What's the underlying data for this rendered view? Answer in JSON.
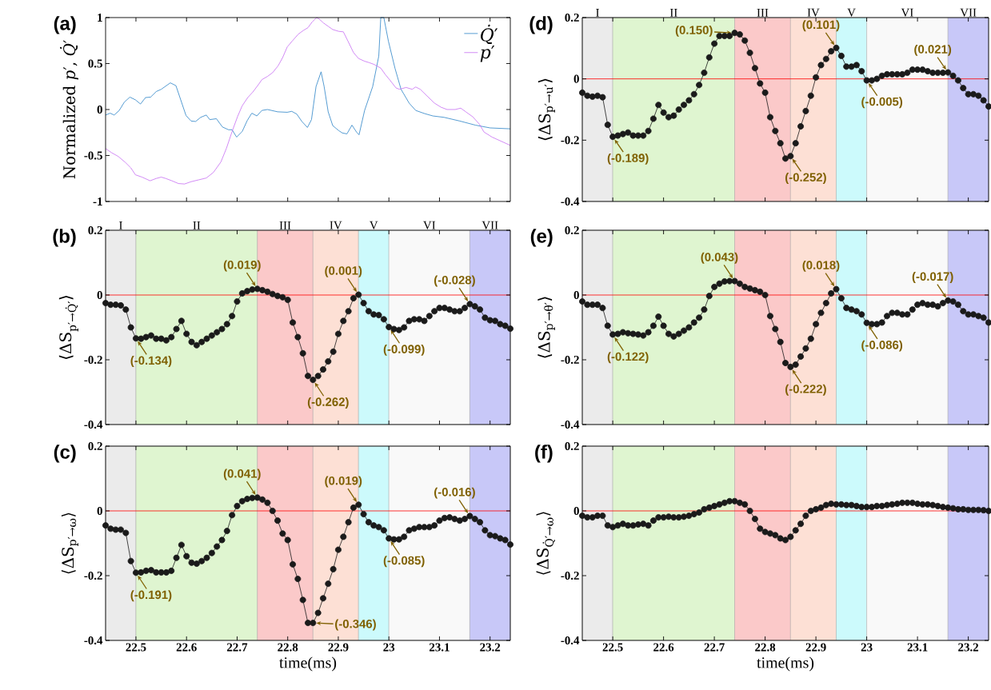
{
  "chart_data": [
    {
      "type": "line",
      "ylabel": "Normalized *p*′, *Q̇*′",
      "xlim": [
        22.44,
        23.24
      ],
      "ylim": [
        -1,
        1
      ],
      "xticks": [
        22.5,
        22.6,
        22.7,
        22.8,
        22.9,
        23,
        23.1,
        23.2
      ],
      "yticks": [
        -1,
        -0.5,
        0,
        0.5,
        1
      ],
      "tick_labels": "y",
      "legend": "top right",
      "annotations": [
        "(a)"
      ],
      "series": [
        {
          "name": "*Q̇*′",
          "color": "#2b83c6",
          "x": [
            22.44,
            22.449,
            22.457,
            22.467,
            22.477,
            22.488,
            22.499,
            22.509,
            22.519,
            22.529,
            22.54,
            22.55,
            22.568,
            22.579,
            22.599,
            22.609,
            22.618,
            22.628,
            22.639,
            22.646,
            22.659,
            22.671,
            22.683,
            22.69,
            22.699,
            22.71,
            22.72,
            22.729,
            22.739,
            22.749,
            22.76,
            22.78,
            22.799,
            22.808,
            22.818,
            22.828,
            22.839,
            22.847,
            22.856,
            22.866,
            22.872,
            22.88,
            22.889,
            22.901,
            22.908,
            22.917,
            22.927,
            22.936,
            22.941,
            22.952,
            22.968,
            22.98,
            22.984,
            22.99,
            22.999,
            23.012,
            23.024,
            23.04,
            23.053,
            23.071,
            23.087,
            23.109,
            23.14,
            23.171,
            23.2,
            23.24
          ],
          "values": [
            -0.06,
            -0.04,
            -0.06,
            -0.01,
            0.08,
            0.135,
            0.105,
            0.06,
            0.13,
            0.135,
            0.195,
            0.22,
            0.29,
            0.26,
            -0.065,
            -0.125,
            -0.13,
            -0.085,
            -0.06,
            -0.11,
            -0.1,
            -0.19,
            -0.22,
            -0.22,
            -0.3,
            -0.24,
            -0.12,
            -0.04,
            -0.07,
            -0.01,
            0.0,
            -0.025,
            -0.03,
            -0.02,
            -0.05,
            -0.13,
            -0.195,
            -0.11,
            0.25,
            0.41,
            0.25,
            -0.025,
            -0.175,
            -0.23,
            -0.255,
            -0.265,
            -0.17,
            -0.245,
            -0.275,
            -0.01,
            0.25,
            0.58,
            1.0,
            1.0,
            0.745,
            0.45,
            0.22,
            0.07,
            -0.01,
            -0.045,
            -0.07,
            -0.085,
            -0.125,
            -0.17,
            -0.2,
            -0.21
          ]
        },
        {
          "name": "*p*′",
          "color": "#c66df2",
          "x": [
            22.44,
            22.452,
            22.465,
            22.479,
            22.49,
            22.499,
            22.512,
            22.528,
            22.54,
            22.55,
            22.559,
            22.571,
            22.584,
            22.596,
            22.609,
            22.624,
            22.639,
            22.653,
            22.668,
            22.679,
            22.69,
            22.701,
            22.71,
            22.721,
            22.731,
            22.742,
            22.749,
            22.76,
            22.77,
            22.781,
            22.79,
            22.799,
            22.809,
            22.821,
            22.831,
            22.84,
            22.848,
            22.857,
            22.862,
            22.871,
            22.88,
            22.889,
            22.901,
            22.91,
            22.919,
            22.93,
            22.94,
            22.952,
            22.961,
            22.971,
            22.984,
            22.993,
            23.002,
            23.014,
            23.021,
            23.034,
            23.046,
            23.053,
            23.062,
            23.074,
            23.09,
            23.103,
            23.115,
            23.131,
            23.142,
            23.152,
            23.166,
            23.179,
            23.188,
            23.204,
            23.24
          ],
          "values": [
            -0.425,
            -0.47,
            -0.51,
            -0.575,
            -0.635,
            -0.71,
            -0.735,
            -0.775,
            -0.75,
            -0.735,
            -0.75,
            -0.775,
            -0.805,
            -0.81,
            -0.785,
            -0.765,
            -0.745,
            -0.685,
            -0.57,
            -0.42,
            -0.24,
            -0.075,
            0.04,
            0.13,
            0.19,
            0.27,
            0.325,
            0.36,
            0.4,
            0.475,
            0.565,
            0.68,
            0.745,
            0.82,
            0.86,
            0.89,
            0.95,
            1.0,
            0.985,
            0.94,
            0.905,
            0.87,
            0.85,
            0.845,
            0.745,
            0.62,
            0.555,
            0.525,
            0.51,
            0.49,
            0.45,
            0.38,
            0.32,
            0.235,
            0.22,
            0.24,
            0.22,
            0.245,
            0.22,
            0.155,
            0.07,
            0.025,
            0.0,
            0.0,
            0.015,
            -0.025,
            -0.08,
            -0.16,
            -0.245,
            -0.3,
            -0.39
          ]
        }
      ]
    },
    {
      "type": "line",
      "ylabel": "⟨ΔS$_{p′→u′}$⟩",
      "xlim": [
        22.44,
        23.24
      ],
      "ylim": [
        -0.4,
        0.2
      ],
      "xticks": [
        22.5,
        22.6,
        22.7,
        22.8,
        22.9,
        23,
        23.1,
        23.2
      ],
      "yticks": [
        -0.4,
        -0.2,
        0,
        0.2
      ],
      "tick_labels": "y",
      "marker": "circle",
      "x": [
        22.44,
        22.45,
        22.46,
        22.47,
        22.48,
        22.49,
        22.5,
        22.51,
        22.52,
        22.53,
        22.54,
        22.55,
        22.56,
        22.57,
        22.58,
        22.59,
        22.6,
        22.61,
        22.62,
        22.63,
        22.64,
        22.65,
        22.66,
        22.67,
        22.68,
        22.69,
        22.7,
        22.71,
        22.72,
        22.73,
        22.74,
        22.75,
        22.76,
        22.77,
        22.78,
        22.79,
        22.8,
        22.81,
        22.82,
        22.83,
        22.84,
        22.85,
        22.86,
        22.87,
        22.88,
        22.89,
        22.9,
        22.91,
        22.92,
        22.93,
        22.94,
        22.95,
        22.96,
        22.97,
        22.98,
        22.99,
        23,
        23.01,
        23.02,
        23.03,
        23.04,
        23.05,
        23.06,
        23.07,
        23.08,
        23.09,
        23.1,
        23.11,
        23.12,
        23.13,
        23.14,
        23.15,
        23.16,
        23.17,
        23.18,
        23.19,
        23.2,
        23.21,
        23.22,
        23.23,
        23.24
      ],
      "series": [
        {
          "color": "#1a1a1a",
          "values": [
            -0.045,
            -0.055,
            -0.058,
            -0.055,
            -0.06,
            -0.15,
            -0.189,
            -0.185,
            -0.18,
            -0.175,
            -0.185,
            -0.185,
            -0.185,
            -0.17,
            -0.13,
            -0.085,
            -0.11,
            -0.125,
            -0.12,
            -0.1,
            -0.085,
            -0.07,
            -0.05,
            -0.02,
            0.02,
            0.07,
            0.115,
            0.14,
            0.14,
            0.14,
            0.15,
            0.145,
            0.125,
            0.085,
            0.035,
            -0.015,
            -0.045,
            -0.125,
            -0.17,
            -0.21,
            -0.26,
            -0.252,
            -0.21,
            -0.155,
            -0.105,
            -0.055,
            0.005,
            0.045,
            0.065,
            0.09,
            0.101,
            0.075,
            0.04,
            0.04,
            0.045,
            0.025,
            -0.005,
            -0.005,
            0.0,
            0.01,
            0.015,
            0.015,
            0.015,
            0.015,
            0.02,
            0.03,
            0.03,
            0.03,
            0.025,
            0.02,
            0.02,
            0.02,
            0.021,
            0.01,
            -0.005,
            -0.03,
            -0.05,
            -0.05,
            -0.055,
            -0.07,
            -0.09
          ]
        }
      ],
      "ref_lines": [
        {
          "axis": "y",
          "value": 0,
          "color": "#ff0000"
        }
      ],
      "bands": [
        {
          "axis": "x",
          "from": 22.44,
          "to": 22.5,
          "label": "I",
          "color": "#ebebeb"
        },
        {
          "axis": "x",
          "from": 22.5,
          "to": 22.74,
          "label": "II",
          "color": "#dff5d0"
        },
        {
          "axis": "x",
          "from": 22.74,
          "to": 22.85,
          "label": "III",
          "color": "#fbc9c9"
        },
        {
          "axis": "x",
          "from": 22.85,
          "to": 22.94,
          "label": "IV",
          "color": "#fde0d5"
        },
        {
          "axis": "x",
          "from": 22.94,
          "to": 23,
          "label": "V",
          "color": "#ccfafc"
        },
        {
          "axis": "x",
          "from": 23,
          "to": 23.16,
          "label": "VI",
          "color": "#f9f9f9"
        },
        {
          "axis": "x",
          "from": 23.16,
          "to": 23.24,
          "label": "VII",
          "color": "#c8c8f8"
        }
      ],
      "annotations": [
        "(d)",
        {
          "text": "(0.150)",
          "x": 22.74,
          "y": 0.15
        },
        {
          "text": "(0.101)",
          "x": 22.94,
          "y": 0.101
        },
        {
          "text": "(0.021)",
          "x": 23.16,
          "y": 0.021
        },
        {
          "text": "(-0.189)",
          "x": 22.5,
          "y": -0.189
        },
        {
          "text": "(-0.252)",
          "x": 22.85,
          "y": -0.252
        },
        {
          "text": "(-0.005)",
          "x": 23,
          "y": -0.005
        }
      ]
    },
    {
      "type": "line",
      "ylabel": "⟨ΔS$_{p′→Q̇′}$⟩",
      "xlim": [
        22.44,
        23.24
      ],
      "ylim": [
        -0.4,
        0.2
      ],
      "xticks": [
        22.5,
        22.6,
        22.7,
        22.8,
        22.9,
        23,
        23.1,
        23.2
      ],
      "yticks": [
        -0.4,
        -0.2,
        0,
        0.2
      ],
      "tick_labels": "y",
      "marker": "circle",
      "x": [
        22.44,
        22.45,
        22.46,
        22.47,
        22.48,
        22.49,
        22.5,
        22.51,
        22.52,
        22.53,
        22.54,
        22.55,
        22.56,
        22.57,
        22.58,
        22.59,
        22.6,
        22.61,
        22.62,
        22.63,
        22.64,
        22.65,
        22.66,
        22.67,
        22.68,
        22.69,
        22.7,
        22.71,
        22.72,
        22.73,
        22.74,
        22.75,
        22.76,
        22.77,
        22.78,
        22.79,
        22.8,
        22.81,
        22.82,
        22.83,
        22.84,
        22.85,
        22.86,
        22.87,
        22.88,
        22.89,
        22.9,
        22.91,
        22.92,
        22.93,
        22.94,
        22.95,
        22.96,
        22.97,
        22.98,
        22.99,
        23,
        23.01,
        23.02,
        23.03,
        23.04,
        23.05,
        23.06,
        23.07,
        23.08,
        23.09,
        23.1,
        23.11,
        23.12,
        23.13,
        23.14,
        23.15,
        23.16,
        23.17,
        23.18,
        23.19,
        23.2,
        23.21,
        23.22,
        23.23,
        23.24
      ],
      "series": [
        {
          "color": "#1a1a1a",
          "values": [
            -0.025,
            -0.03,
            -0.03,
            -0.032,
            -0.045,
            -0.1,
            -0.134,
            -0.135,
            -0.13,
            -0.125,
            -0.135,
            -0.135,
            -0.14,
            -0.13,
            -0.105,
            -0.08,
            -0.12,
            -0.145,
            -0.155,
            -0.145,
            -0.135,
            -0.125,
            -0.115,
            -0.105,
            -0.09,
            -0.065,
            -0.02,
            0.005,
            0.012,
            0.017,
            0.019,
            0.015,
            0.01,
            0.003,
            -0.003,
            -0.007,
            -0.015,
            -0.085,
            -0.13,
            -0.18,
            -0.25,
            -0.262,
            -0.25,
            -0.23,
            -0.205,
            -0.175,
            -0.12,
            -0.08,
            -0.05,
            -0.01,
            0.001,
            -0.025,
            -0.05,
            -0.06,
            -0.062,
            -0.075,
            -0.099,
            -0.105,
            -0.108,
            -0.1,
            -0.08,
            -0.075,
            -0.075,
            -0.08,
            -0.065,
            -0.05,
            -0.04,
            -0.04,
            -0.045,
            -0.05,
            -0.05,
            -0.04,
            -0.028,
            -0.035,
            -0.045,
            -0.07,
            -0.078,
            -0.08,
            -0.09,
            -0.095,
            -0.104
          ]
        }
      ],
      "ref_lines": [
        {
          "axis": "y",
          "value": 0,
          "color": "#ff0000"
        }
      ],
      "bands": [
        {
          "axis": "x",
          "from": 22.44,
          "to": 22.5,
          "label": "I",
          "color": "#ebebeb"
        },
        {
          "axis": "x",
          "from": 22.5,
          "to": 22.74,
          "label": "II",
          "color": "#dff5d0"
        },
        {
          "axis": "x",
          "from": 22.74,
          "to": 22.85,
          "label": "III",
          "color": "#fbc9c9"
        },
        {
          "axis": "x",
          "from": 22.85,
          "to": 22.94,
          "label": "IV",
          "color": "#fde0d5"
        },
        {
          "axis": "x",
          "from": 22.94,
          "to": 23,
          "label": "V",
          "color": "#ccfafc"
        },
        {
          "axis": "x",
          "from": 23,
          "to": 23.16,
          "label": "VI",
          "color": "#f9f9f9"
        },
        {
          "axis": "x",
          "from": 23.16,
          "to": 23.24,
          "label": "VII",
          "color": "#c8c8f8"
        }
      ],
      "annotations": [
        "(b)",
        {
          "text": "(0.019)",
          "x": 22.74,
          "y": 0.019
        },
        {
          "text": "(0.001)",
          "x": 22.94,
          "y": 0.001
        },
        {
          "text": "(-0.028)",
          "x": 23.16,
          "y": -0.028
        },
        {
          "text": "(-0.134)",
          "x": 22.5,
          "y": -0.134
        },
        {
          "text": "(-0.262)",
          "x": 22.85,
          "y": -0.262
        },
        {
          "text": "(-0.099)",
          "x": 23,
          "y": -0.099
        }
      ]
    },
    {
      "type": "line",
      "ylabel": "⟨ΔS$_{p′→θ′}$⟩",
      "xlim": [
        22.44,
        23.24
      ],
      "ylim": [
        -0.4,
        0.2
      ],
      "xticks": [
        22.5,
        22.6,
        22.7,
        22.8,
        22.9,
        23,
        23.1,
        23.2
      ],
      "yticks": [
        -0.4,
        -0.2,
        0,
        0.2
      ],
      "tick_labels": "y",
      "marker": "circle",
      "x": [
        22.44,
        22.45,
        22.46,
        22.47,
        22.48,
        22.49,
        22.5,
        22.51,
        22.52,
        22.53,
        22.54,
        22.55,
        22.56,
        22.57,
        22.58,
        22.59,
        22.6,
        22.61,
        22.62,
        22.63,
        22.64,
        22.65,
        22.66,
        22.67,
        22.68,
        22.69,
        22.7,
        22.71,
        22.72,
        22.73,
        22.74,
        22.75,
        22.76,
        22.77,
        22.78,
        22.79,
        22.8,
        22.81,
        22.82,
        22.83,
        22.84,
        22.85,
        22.86,
        22.87,
        22.88,
        22.89,
        22.9,
        22.91,
        22.92,
        22.93,
        22.94,
        22.95,
        22.96,
        22.97,
        22.98,
        22.99,
        23,
        23.01,
        23.02,
        23.03,
        23.04,
        23.05,
        23.06,
        23.07,
        23.08,
        23.09,
        23.1,
        23.11,
        23.12,
        23.13,
        23.14,
        23.15,
        23.16,
        23.17,
        23.18,
        23.19,
        23.2,
        23.21,
        23.22,
        23.23,
        23.24
      ],
      "series": [
        {
          "color": "#1a1a1a",
          "values": [
            -0.02,
            -0.03,
            -0.03,
            -0.03,
            -0.04,
            -0.095,
            -0.122,
            -0.12,
            -0.115,
            -0.118,
            -0.12,
            -0.122,
            -0.125,
            -0.115,
            -0.095,
            -0.067,
            -0.095,
            -0.12,
            -0.128,
            -0.12,
            -0.11,
            -0.1,
            -0.085,
            -0.07,
            -0.045,
            -0.003,
            0.025,
            0.035,
            0.042,
            0.043,
            0.043,
            0.035,
            0.025,
            0.02,
            0.015,
            0.01,
            0.0,
            -0.065,
            -0.105,
            -0.145,
            -0.21,
            -0.222,
            -0.215,
            -0.19,
            -0.165,
            -0.135,
            -0.09,
            -0.055,
            -0.025,
            0.005,
            0.018,
            -0.01,
            -0.04,
            -0.045,
            -0.05,
            -0.06,
            -0.086,
            -0.09,
            -0.09,
            -0.085,
            -0.065,
            -0.055,
            -0.055,
            -0.06,
            -0.06,
            -0.045,
            -0.03,
            -0.025,
            -0.03,
            -0.03,
            -0.035,
            -0.025,
            -0.017,
            -0.02,
            -0.03,
            -0.05,
            -0.06,
            -0.06,
            -0.065,
            -0.07,
            -0.085
          ]
        }
      ],
      "ref_lines": [
        {
          "axis": "y",
          "value": 0,
          "color": "#ff0000"
        }
      ],
      "bands": [
        {
          "axis": "x",
          "from": 22.44,
          "to": 22.5,
          "color": "#ebebeb"
        },
        {
          "axis": "x",
          "from": 22.5,
          "to": 22.74,
          "color": "#dff5d0"
        },
        {
          "axis": "x",
          "from": 22.74,
          "to": 22.85,
          "color": "#fbc9c9"
        },
        {
          "axis": "x",
          "from": 22.85,
          "to": 22.94,
          "color": "#fde0d5"
        },
        {
          "axis": "x",
          "from": 22.94,
          "to": 23,
          "color": "#ccfafc"
        },
        {
          "axis": "x",
          "from": 23,
          "to": 23.16,
          "color": "#f9f9f9"
        },
        {
          "axis": "x",
          "from": 23.16,
          "to": 23.24,
          "color": "#c8c8f8"
        }
      ],
      "annotations": [
        "(e)",
        {
          "text": "(0.043)",
          "x": 22.74,
          "y": 0.043
        },
        {
          "text": "(0.018)",
          "x": 22.94,
          "y": 0.018
        },
        {
          "text": "(-0.017)",
          "x": 23.16,
          "y": -0.017
        },
        {
          "text": "(-0.122)",
          "x": 22.5,
          "y": -0.122
        },
        {
          "text": "(-0.222)",
          "x": 22.85,
          "y": -0.222
        },
        {
          "text": "(-0.086)",
          "x": 23,
          "y": -0.086
        }
      ]
    },
    {
      "type": "line",
      "ylabel": "⟨ΔS$_{p′→ω}$⟩",
      "xlabel": "time(ms)",
      "xlim": [
        22.44,
        23.24
      ],
      "ylim": [
        -0.4,
        0.2
      ],
      "xticks": [
        22.5,
        22.6,
        22.7,
        22.8,
        22.9,
        23,
        23.1,
        23.2
      ],
      "yticks": [
        -0.4,
        -0.2,
        0,
        0.2
      ],
      "marker": "circle",
      "x": [
        22.44,
        22.45,
        22.46,
        22.47,
        22.48,
        22.49,
        22.5,
        22.51,
        22.52,
        22.53,
        22.54,
        22.55,
        22.56,
        22.57,
        22.58,
        22.59,
        22.6,
        22.61,
        22.62,
        22.63,
        22.64,
        22.65,
        22.66,
        22.67,
        22.68,
        22.69,
        22.7,
        22.71,
        22.72,
        22.73,
        22.74,
        22.75,
        22.76,
        22.77,
        22.78,
        22.79,
        22.8,
        22.81,
        22.82,
        22.83,
        22.84,
        22.85,
        22.86,
        22.87,
        22.88,
        22.89,
        22.9,
        22.91,
        22.92,
        22.93,
        22.94,
        22.95,
        22.96,
        22.97,
        22.98,
        22.99,
        23,
        23.01,
        23.02,
        23.03,
        23.04,
        23.05,
        23.06,
        23.07,
        23.08,
        23.09,
        23.1,
        23.11,
        23.12,
        23.13,
        23.14,
        23.15,
        23.16,
        23.17,
        23.18,
        23.19,
        23.2,
        23.21,
        23.22,
        23.23,
        23.24
      ],
      "series": [
        {
          "color": "#1a1a1a",
          "values": [
            -0.045,
            -0.055,
            -0.058,
            -0.058,
            -0.068,
            -0.155,
            -0.191,
            -0.19,
            -0.185,
            -0.183,
            -0.19,
            -0.19,
            -0.19,
            -0.185,
            -0.145,
            -0.105,
            -0.14,
            -0.16,
            -0.163,
            -0.155,
            -0.145,
            -0.13,
            -0.11,
            -0.09,
            -0.062,
            -0.013,
            0.015,
            0.03,
            0.037,
            0.04,
            0.041,
            0.035,
            0.025,
            0.0,
            -0.03,
            -0.07,
            -0.09,
            -0.165,
            -0.21,
            -0.275,
            -0.346,
            -0.346,
            -0.315,
            -0.27,
            -0.225,
            -0.18,
            -0.12,
            -0.08,
            -0.035,
            0.01,
            0.019,
            -0.01,
            -0.035,
            -0.045,
            -0.05,
            -0.06,
            -0.085,
            -0.088,
            -0.088,
            -0.08,
            -0.06,
            -0.055,
            -0.05,
            -0.05,
            -0.05,
            -0.045,
            -0.03,
            -0.022,
            -0.02,
            -0.025,
            -0.03,
            -0.025,
            -0.016,
            -0.025,
            -0.035,
            -0.06,
            -0.075,
            -0.078,
            -0.085,
            -0.09,
            -0.104
          ]
        }
      ],
      "ref_lines": [
        {
          "axis": "y",
          "value": 0,
          "color": "#ff0000"
        }
      ],
      "bands": [
        {
          "axis": "x",
          "from": 22.44,
          "to": 22.5,
          "color": "#ebebeb"
        },
        {
          "axis": "x",
          "from": 22.5,
          "to": 22.74,
          "color": "#dff5d0"
        },
        {
          "axis": "x",
          "from": 22.74,
          "to": 22.85,
          "color": "#fbc9c9"
        },
        {
          "axis": "x",
          "from": 22.85,
          "to": 22.94,
          "color": "#fde0d5"
        },
        {
          "axis": "x",
          "from": 22.94,
          "to": 23,
          "color": "#ccfafc"
        },
        {
          "axis": "x",
          "from": 23,
          "to": 23.16,
          "color": "#f9f9f9"
        },
        {
          "axis": "x",
          "from": 23.16,
          "to": 23.24,
          "color": "#c8c8f8"
        }
      ],
      "annotations": [
        "(c)",
        {
          "text": "(0.041)",
          "x": 22.74,
          "y": 0.041
        },
        {
          "text": "(0.019)",
          "x": 22.94,
          "y": 0.019
        },
        {
          "text": "(-0.016)",
          "x": 23.16,
          "y": -0.016
        },
        {
          "text": "(-0.191)",
          "x": 22.5,
          "y": -0.191
        },
        {
          "text": "(-0.346)",
          "x": 22.85,
          "y": -0.346
        },
        {
          "text": "(-0.085)",
          "x": 23,
          "y": -0.085
        }
      ]
    },
    {
      "type": "line",
      "ylabel": "⟨ΔS$_{Q̇′→ω}$⟩",
      "xlabel": "time(ms)",
      "xlim": [
        22.44,
        23.24
      ],
      "ylim": [
        -0.4,
        0.2
      ],
      "xticks": [
        22.5,
        22.6,
        22.7,
        22.8,
        22.9,
        23,
        23.1,
        23.2
      ],
      "yticks": [
        -0.4,
        -0.2,
        0,
        0.2
      ],
      "marker": "circle",
      "x": [
        22.44,
        22.45,
        22.46,
        22.47,
        22.48,
        22.49,
        22.5,
        22.51,
        22.52,
        22.53,
        22.54,
        22.55,
        22.56,
        22.57,
        22.58,
        22.59,
        22.6,
        22.61,
        22.62,
        22.63,
        22.64,
        22.65,
        22.66,
        22.67,
        22.68,
        22.69,
        22.7,
        22.71,
        22.72,
        22.73,
        22.74,
        22.75,
        22.76,
        22.77,
        22.78,
        22.79,
        22.8,
        22.81,
        22.82,
        22.83,
        22.84,
        22.85,
        22.86,
        22.87,
        22.88,
        22.89,
        22.9,
        22.91,
        22.92,
        22.93,
        22.94,
        22.95,
        22.96,
        22.97,
        22.98,
        22.99,
        23,
        23.01,
        23.02,
        23.03,
        23.04,
        23.05,
        23.06,
        23.07,
        23.08,
        23.09,
        23.1,
        23.11,
        23.12,
        23.13,
        23.14,
        23.15,
        23.16,
        23.17,
        23.18,
        23.19,
        23.2,
        23.21,
        23.22,
        23.23,
        23.24
      ],
      "series": [
        {
          "color": "#1a1a1a",
          "values": [
            -0.015,
            -0.02,
            -0.02,
            -0.015,
            -0.015,
            -0.045,
            -0.05,
            -0.045,
            -0.04,
            -0.045,
            -0.045,
            -0.042,
            -0.04,
            -0.045,
            -0.03,
            -0.02,
            -0.02,
            -0.018,
            -0.02,
            -0.02,
            -0.018,
            -0.015,
            -0.01,
            -0.005,
            0.005,
            0.01,
            0.015,
            0.02,
            0.025,
            0.03,
            0.03,
            0.025,
            0.02,
            0.0,
            -0.025,
            -0.055,
            -0.065,
            -0.07,
            -0.075,
            -0.085,
            -0.09,
            -0.08,
            -0.06,
            -0.04,
            -0.015,
            0.0,
            0.005,
            0.01,
            0.018,
            0.022,
            0.02,
            0.02,
            0.018,
            0.018,
            0.015,
            0.012,
            0.012,
            0.012,
            0.015,
            0.015,
            0.018,
            0.02,
            0.022,
            0.025,
            0.025,
            0.025,
            0.022,
            0.02,
            0.02,
            0.018,
            0.015,
            0.012,
            0.01,
            0.008,
            0.005,
            0.005,
            0.003,
            0.003,
            0.003,
            0.002,
            0.0
          ]
        }
      ],
      "ref_lines": [
        {
          "axis": "y",
          "value": 0,
          "color": "#ff0000"
        }
      ],
      "bands": [
        {
          "axis": "x",
          "from": 22.44,
          "to": 22.5,
          "color": "#ebebeb"
        },
        {
          "axis": "x",
          "from": 22.5,
          "to": 22.74,
          "color": "#dff5d0"
        },
        {
          "axis": "x",
          "from": 22.74,
          "to": 22.85,
          "color": "#fbc9c9"
        },
        {
          "axis": "x",
          "from": 22.85,
          "to": 22.94,
          "color": "#fde0d5"
        },
        {
          "axis": "x",
          "from": 22.94,
          "to": 23,
          "color": "#ccfafc"
        },
        {
          "axis": "x",
          "from": 23,
          "to": 23.16,
          "color": "#f9f9f9"
        },
        {
          "axis": "x",
          "from": 23.16,
          "to": 23.24,
          "color": "#c8c8f8"
        }
      ],
      "annotations": [
        "(f)"
      ]
    }
  ]
}
